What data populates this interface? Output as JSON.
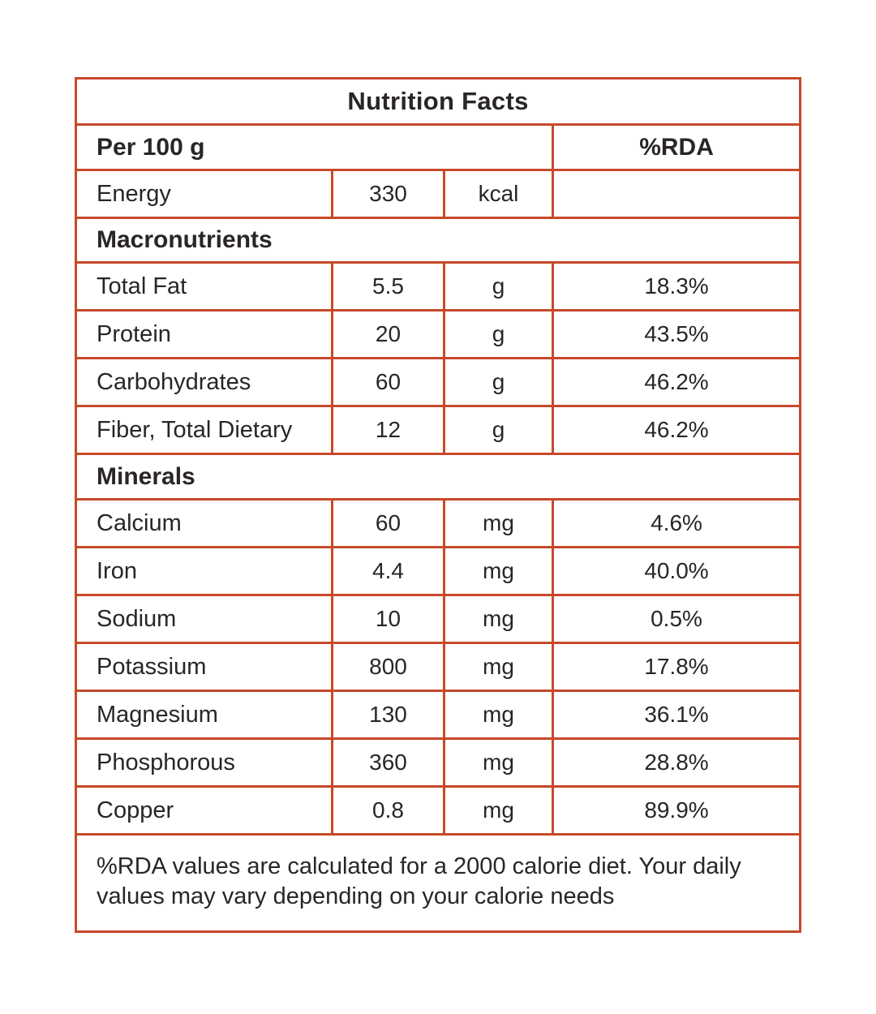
{
  "table": {
    "title": "Nutrition Facts",
    "header": {
      "serving_label": "Per 100 g",
      "rda_label": "%RDA"
    },
    "energy": {
      "label": "Energy",
      "value": "330",
      "unit": "kcal",
      "rda": ""
    },
    "sections": [
      {
        "name": "Macronutrients",
        "rows": [
          {
            "label": "Total Fat",
            "value": "5.5",
            "unit": "g",
            "rda": "18.3%"
          },
          {
            "label": "Protein",
            "value": "20",
            "unit": "g",
            "rda": "43.5%"
          },
          {
            "label": "Carbohydrates",
            "value": "60",
            "unit": "g",
            "rda": "46.2%"
          },
          {
            "label": "Fiber, Total Dietary",
            "value": "12",
            "unit": "g",
            "rda": "46.2%"
          }
        ]
      },
      {
        "name": "Minerals",
        "rows": [
          {
            "label": "Calcium",
            "value": "60",
            "unit": "mg",
            "rda": "4.6%"
          },
          {
            "label": "Iron",
            "value": "4.4",
            "unit": "mg",
            "rda": "40.0%"
          },
          {
            "label": "Sodium",
            "value": "10",
            "unit": "mg",
            "rda": "0.5%"
          },
          {
            "label": "Potassium",
            "value": "800",
            "unit": "mg",
            "rda": "17.8%"
          },
          {
            "label": "Magnesium",
            "value": "130",
            "unit": "mg",
            "rda": "36.1%"
          },
          {
            "label": "Phosphorous",
            "value": "360",
            "unit": "mg",
            "rda": "28.8%"
          },
          {
            "label": "Copper",
            "value": "0.8",
            "unit": "mg",
            "rda": "89.9%"
          }
        ]
      }
    ],
    "footnote": "%RDA values are calculated for a 2000 calorie diet. Your daily values may vary depending on your calorie needs",
    "colors": {
      "border": "#c6492a",
      "text": "#2a2526"
    }
  }
}
